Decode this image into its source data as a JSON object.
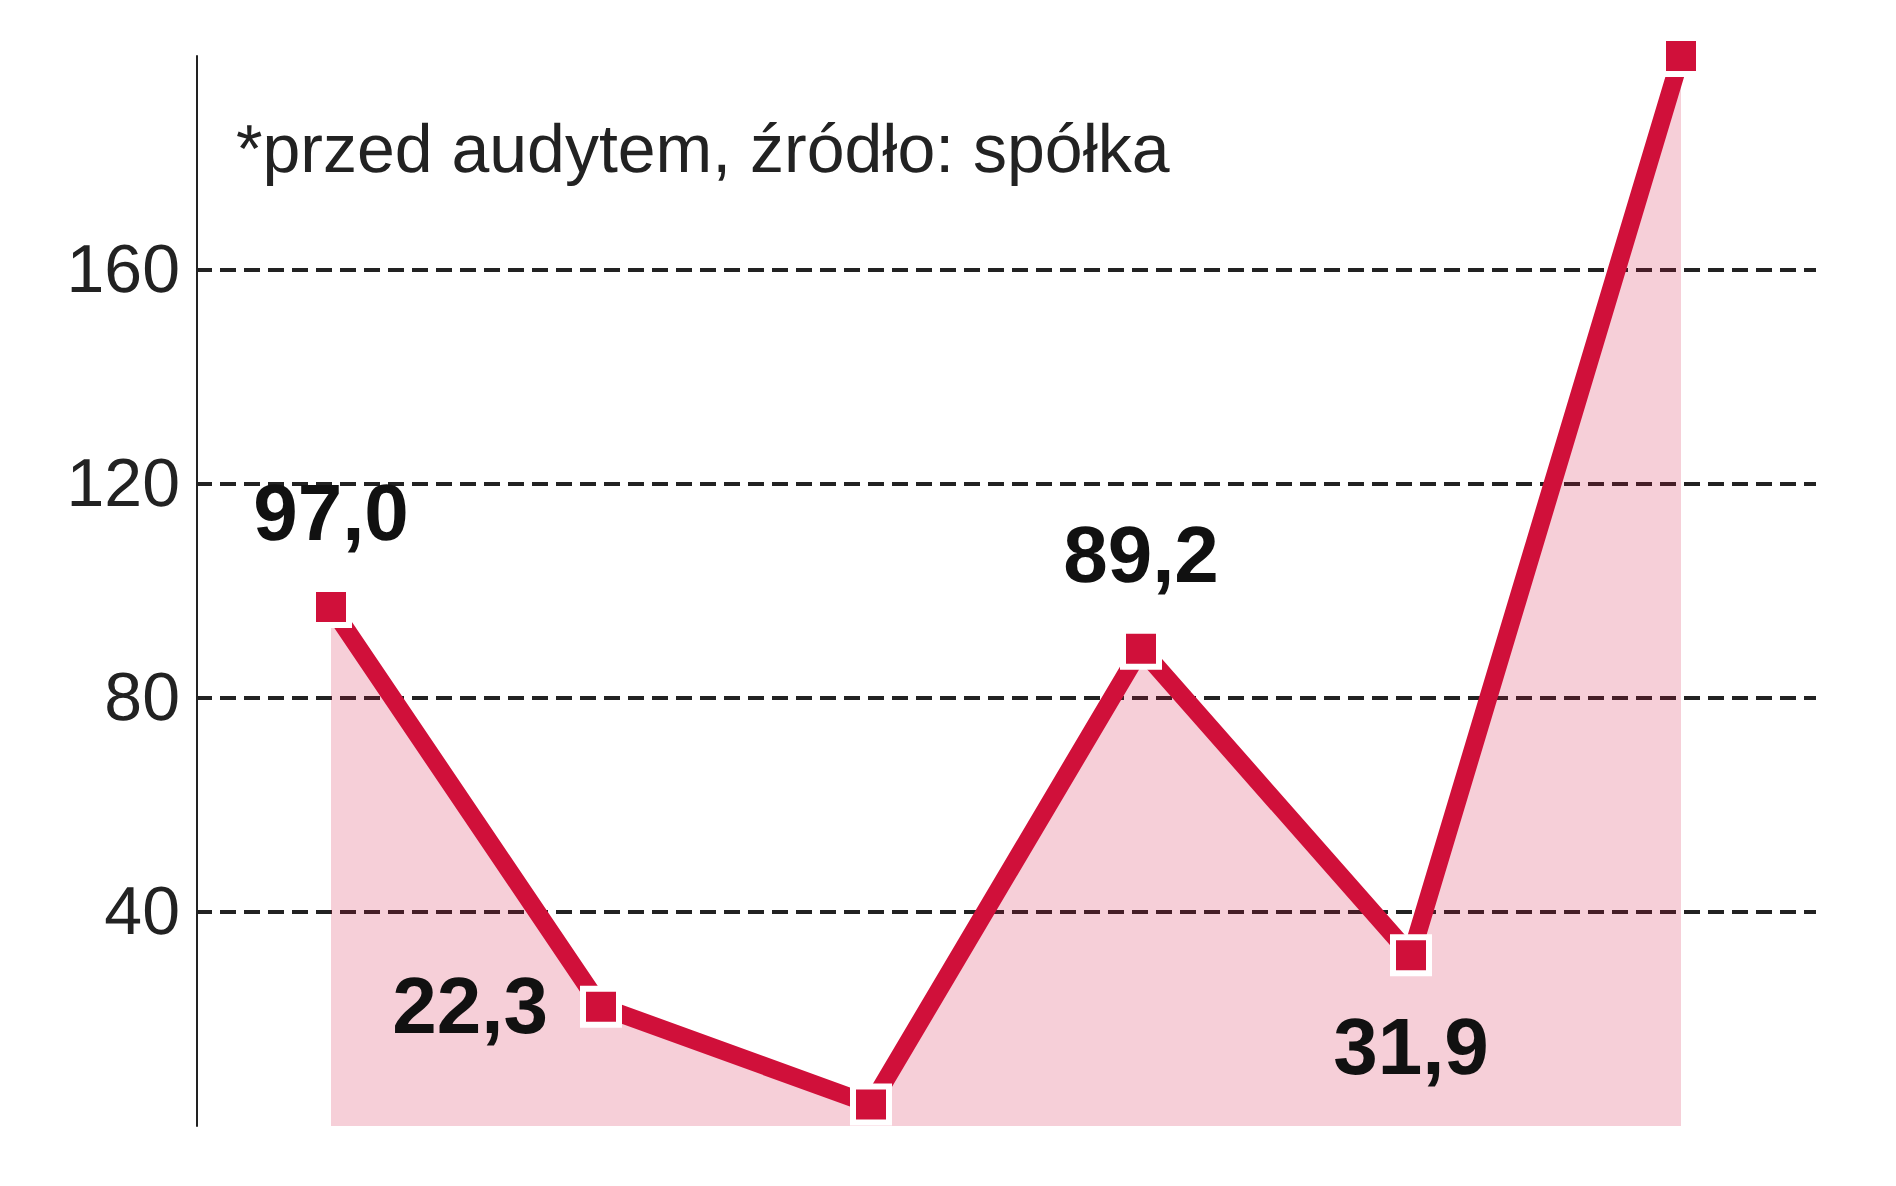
{
  "chart_data": {
    "type": "area",
    "categories": [
      null,
      null,
      null,
      null,
      null,
      null
    ],
    "series": [
      {
        "color": "#d0103a",
        "values": [
          97.0,
          22.3,
          4,
          89.2,
          31.9,
          200
        ],
        "value_labels": [
          "97,0",
          "22,3",
          null,
          "89,2",
          "31,9",
          null
        ]
      }
    ],
    "ylim": [
      0,
      200
    ],
    "yticks": [
      40,
      80,
      120,
      160
    ],
    "grid": "y",
    "marker": "square",
    "annotations": [
      "*przed audytem, źródło: spółka"
    ]
  }
}
